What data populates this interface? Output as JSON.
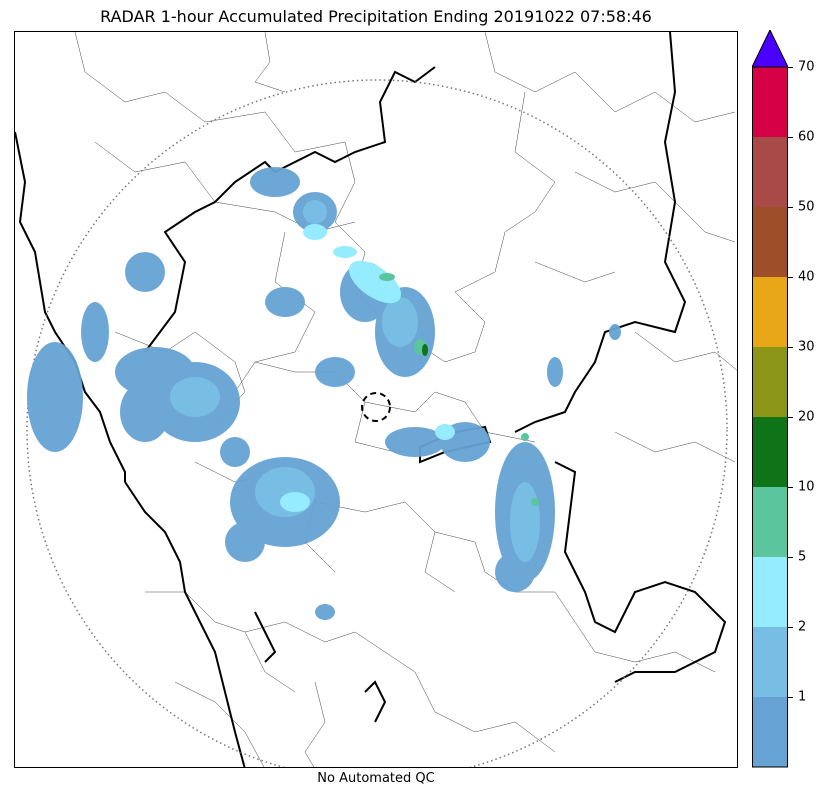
{
  "title": "RADAR 1-hour Accumulated Precipitation Ending 20191022 07:58:46",
  "qc_label": "No Automated QC",
  "colorbar": {
    "extend": "max",
    "overflow_color": "#4b00ff",
    "bins": [
      {
        "from": 0,
        "to": 1,
        "color": "#66a3d4"
      },
      {
        "from": 1,
        "to": 2,
        "color": "#78bde4"
      },
      {
        "from": 2,
        "to": 5,
        "color": "#95ecff"
      },
      {
        "from": 5,
        "to": 10,
        "color": "#5bc59d"
      },
      {
        "from": 10,
        "to": 20,
        "color": "#0f7318"
      },
      {
        "from": 20,
        "to": 30,
        "color": "#8b9517"
      },
      {
        "from": 30,
        "to": 40,
        "color": "#e8a717"
      },
      {
        "from": 40,
        "to": 50,
        "color": "#9c4f29"
      },
      {
        "from": 50,
        "to": 60,
        "color": "#a84a47"
      },
      {
        "from": 60,
        "to": 70,
        "color": "#d50045"
      }
    ],
    "ticks": [
      "1",
      "2",
      "5",
      "10",
      "20",
      "30",
      "40",
      "50",
      "60",
      "70"
    ]
  },
  "map": {
    "radar_range_ring": "dotted",
    "radar_site_marker": "dashed-circle",
    "boundaries": [
      "coastline",
      "state-borders",
      "district-borders"
    ]
  }
}
